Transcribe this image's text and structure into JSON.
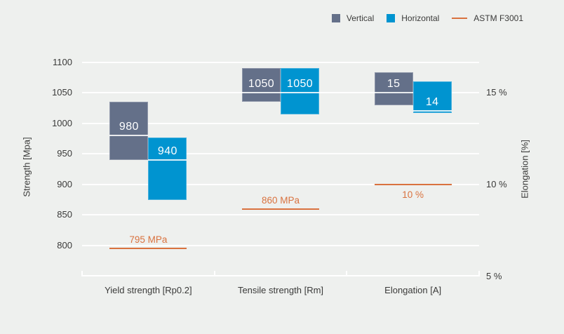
{
  "colors": {
    "background": "#eef0ee",
    "vertical": "#647089",
    "horizontal": "#0094d0",
    "reference": "#d9723f",
    "text": "#3a3a39",
    "grid": "#ffffff",
    "bar_label": "#ffffff"
  },
  "legend": {
    "items": [
      {
        "label": "Vertical",
        "swatch": "square",
        "color": "#647089"
      },
      {
        "label": "Horizontal",
        "swatch": "square",
        "color": "#0094d0"
      },
      {
        "label": "ASTM F3001",
        "swatch": "line",
        "color": "#d9723f"
      }
    ]
  },
  "chart_data": {
    "type": "bar",
    "subtype": "floating_range_bars_with_mean_marker",
    "title": "",
    "legend_position": "top-right",
    "grid": true,
    "categories": [
      "Yield strength [Rp0.2]",
      "Tensile strength [Rm]",
      "Elongation [A]"
    ],
    "left_axis": {
      "label": "Strength [Mpa]",
      "ticks": [
        1100,
        1050,
        1000,
        950,
        900,
        850,
        800
      ],
      "tick_interval": 50,
      "baseline_value": 750
    },
    "right_axis": {
      "label": "Elongation [%]",
      "ticks": [
        {
          "label": "15 %",
          "value": 15
        },
        {
          "label": "10 %",
          "value": 10
        },
        {
          "label": "5 %",
          "value": 5
        }
      ],
      "baseline_value": 5
    },
    "series": [
      {
        "name": "Vertical",
        "color": "#647089",
        "bars": [
          {
            "category": "Yield strength [Rp0.2]",
            "axis": "strength",
            "low": 940,
            "high": 1035,
            "mean": 980,
            "label": "980"
          },
          {
            "category": "Tensile strength [Rm]",
            "axis": "strength",
            "low": 1035,
            "high": 1090,
            "mean": 1050,
            "label": "1050"
          },
          {
            "category": "Elongation [A]",
            "axis": "elongation",
            "low": 14.3,
            "high": 16.1,
            "mean": 15,
            "label": "15"
          }
        ]
      },
      {
        "name": "Horizontal",
        "color": "#0094d0",
        "bars": [
          {
            "category": "Yield strength [Rp0.2]",
            "axis": "strength",
            "low": 875,
            "high": 977,
            "mean": 940,
            "label": "940"
          },
          {
            "category": "Tensile strength [Rm]",
            "axis": "strength",
            "low": 1015,
            "high": 1090,
            "mean": 1050,
            "label": "1050"
          },
          {
            "category": "Elongation [A]",
            "axis": "elongation",
            "low": 13.9,
            "high": 15.6,
            "mean": 14,
            "label": "14"
          }
        ]
      }
    ],
    "reference_lines": [
      {
        "name": "ASTM F3001",
        "category": "Yield strength [Rp0.2]",
        "axis": "strength",
        "value": 795,
        "label": "795 MPa",
        "label_position": "above"
      },
      {
        "name": "ASTM F3001",
        "category": "Tensile strength [Rm]",
        "axis": "strength",
        "value": 860,
        "label": "860 MPa",
        "label_position": "above"
      },
      {
        "name": "ASTM F3001",
        "category": "Elongation [A]",
        "axis": "elongation",
        "value": 10,
        "label": "10 %",
        "label_position": "below"
      }
    ]
  }
}
